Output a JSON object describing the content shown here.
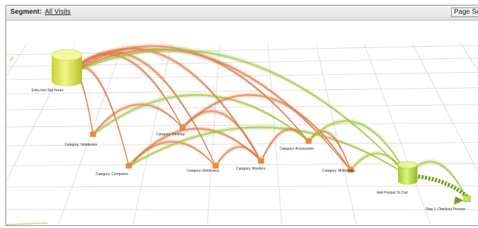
{
  "toolbar": {
    "segment_label": "Segment:",
    "segment_value": "All Visits",
    "page_select_label": "Page Sele"
  },
  "colors": {
    "flow_orange": "#e07a45",
    "flow_green": "#9dc53a",
    "node_yellow": "#e2ea5e",
    "node_green": "#c3e255",
    "node_orange": "#f08b3c",
    "grid": "#d4d4d4"
  },
  "graph": {
    "nodes": [
      {
        "id": "home",
        "kind": "cylinder-large",
        "color": "yellow",
        "label": "Entry Into Site Home"
      },
      {
        "id": "c1",
        "kind": "cube",
        "label": "Category: Notebooks"
      },
      {
        "id": "c2",
        "kind": "cube",
        "label": "Category: Computers"
      },
      {
        "id": "c3",
        "kind": "cube",
        "label": "Category: Desktop"
      },
      {
        "id": "c4",
        "kind": "cube",
        "label": "Category: Electronics"
      },
      {
        "id": "c5",
        "kind": "cube",
        "label": "Category: Monitors"
      },
      {
        "id": "c6",
        "kind": "cube",
        "label": "Category: Accessories"
      },
      {
        "id": "c7",
        "kind": "cube",
        "label": "Category: Multimedia"
      },
      {
        "id": "add",
        "kind": "cylinder",
        "color": "green",
        "label": "Add Product To Cart"
      },
      {
        "id": "checkout",
        "kind": "cube-green",
        "label": "Step 1: Checkout Process"
      }
    ],
    "flows": [
      {
        "from": "home",
        "to": "c1",
        "color": "orange"
      },
      {
        "from": "home",
        "to": "c2",
        "color": "orange"
      },
      {
        "from": "home",
        "to": "c3",
        "color": "orange"
      },
      {
        "from": "home",
        "to": "c4",
        "color": "orange"
      },
      {
        "from": "home",
        "to": "c5",
        "color": "orange"
      },
      {
        "from": "home",
        "to": "c6",
        "color": "orange"
      },
      {
        "from": "home",
        "to": "c7",
        "color": "orange"
      },
      {
        "from": "home",
        "to": "add",
        "color": "green"
      },
      {
        "from": "c1",
        "to": "c3",
        "color": "orange"
      },
      {
        "from": "c1",
        "to": "c6",
        "color": "green"
      },
      {
        "from": "c2",
        "to": "c4",
        "color": "orange"
      },
      {
        "from": "c2",
        "to": "c5",
        "color": "orange"
      },
      {
        "from": "c2",
        "to": "add",
        "color": "green"
      },
      {
        "from": "c3",
        "to": "c5",
        "color": "orange"
      },
      {
        "from": "c3",
        "to": "c7",
        "color": "orange"
      },
      {
        "from": "c4",
        "to": "c5",
        "color": "orange"
      },
      {
        "from": "c5",
        "to": "c6",
        "color": "orange"
      },
      {
        "from": "c6",
        "to": "c7",
        "color": "orange"
      },
      {
        "from": "c6",
        "to": "add",
        "color": "green"
      },
      {
        "from": "c7",
        "to": "add",
        "color": "green"
      },
      {
        "from": "add",
        "to": "checkout",
        "color": "green"
      }
    ]
  }
}
